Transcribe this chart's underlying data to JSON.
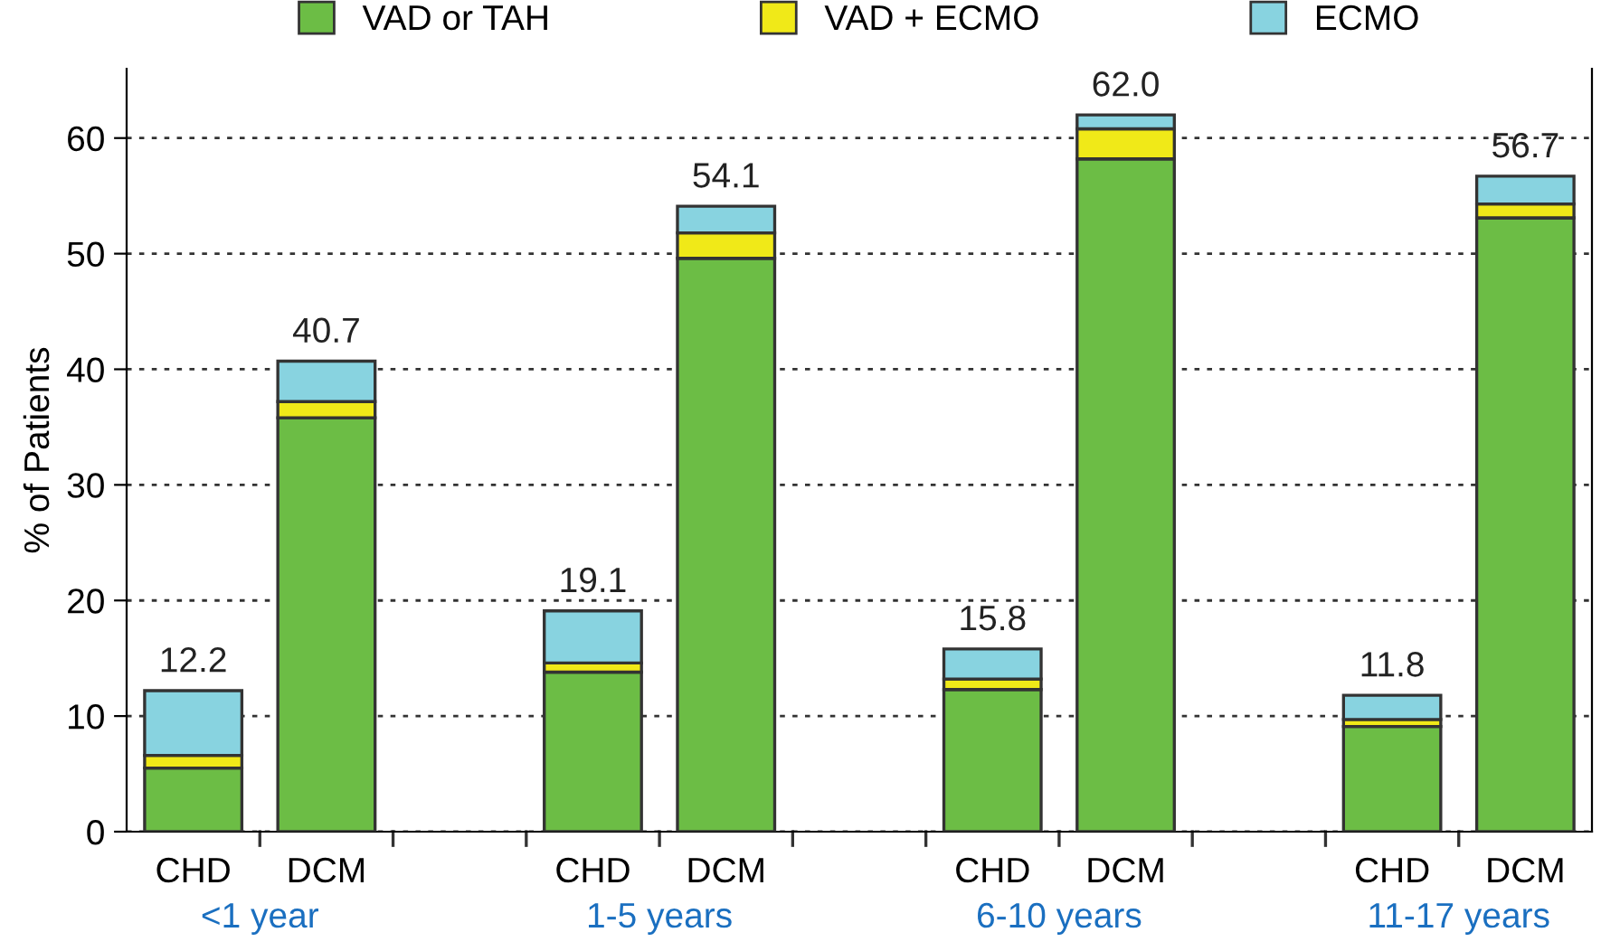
{
  "chart_data": {
    "type": "bar",
    "stacked": true,
    "ylabel": "% of Patients",
    "categories": [
      "CHD",
      "DCM",
      null,
      "CHD",
      "DCM",
      null,
      "CHD",
      "DCM",
      null,
      "CHD",
      "DCM"
    ],
    "series": [
      {
        "name": "VAD or TAH",
        "color": "#6cbd45",
        "values": [
          5.5,
          35.8,
          null,
          13.8,
          49.6,
          null,
          12.3,
          58.2,
          null,
          9.1,
          53.1
        ]
      },
      {
        "name": "VAD + ECMO",
        "color": "#f0e918",
        "values": [
          1.1,
          1.4,
          null,
          0.8,
          2.2,
          null,
          0.9,
          2.6,
          null,
          0.6,
          1.2
        ]
      },
      {
        "name": "ECMO",
        "color": "#88d3e0",
        "values": [
          5.6,
          3.5,
          null,
          4.5,
          2.3,
          null,
          2.6,
          1.2,
          null,
          2.1,
          2.4
        ]
      }
    ],
    "totals": [
      "12.2",
      "40.7",
      null,
      "19.1",
      "54.1",
      null,
      "15.8",
      "62.0",
      null,
      "11.8",
      "56.7"
    ],
    "annotations": [
      "<1 year",
      "1-5 years",
      "6-10 years",
      "11-17 years"
    ],
    "ylim": [
      0,
      66
    ],
    "yticks": [
      0,
      10,
      20,
      30,
      40,
      50,
      60
    ],
    "grid": "y",
    "legend": "top"
  }
}
